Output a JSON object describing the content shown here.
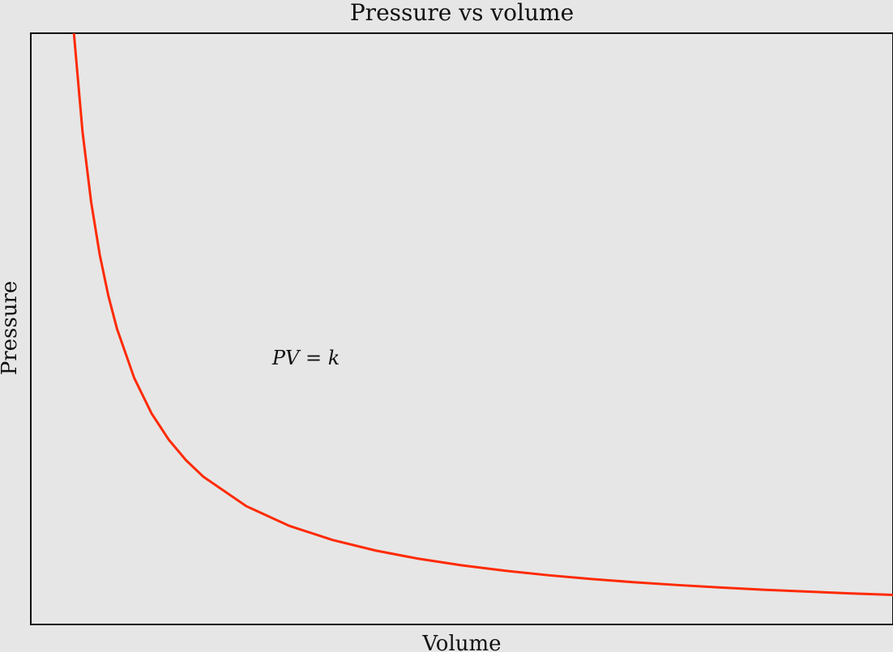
{
  "chart_data": {
    "type": "line",
    "title": "Pressure vs volume",
    "xlabel": "Volume",
    "ylabel": "Pressure",
    "grid": false,
    "legend": "none",
    "background_color": "#e6e6e6",
    "axes_color": "#111111",
    "series": [
      {
        "color": "#ff2a00",
        "x": [
          0.5,
          0.6,
          0.7,
          0.8,
          0.9,
          1.0,
          1.2,
          1.4,
          1.6,
          1.8,
          2.0,
          2.5,
          3.0,
          3.5,
          4.0,
          4.5,
          5.0,
          5.5,
          6.0,
          6.5,
          7.0,
          7.5,
          8.0,
          8.5,
          9.0,
          9.5,
          10.0
        ],
        "y": [
          10.0,
          8.333,
          7.143,
          6.25,
          5.556,
          5.0,
          4.167,
          3.571,
          3.125,
          2.778,
          2.5,
          2.0,
          1.667,
          1.429,
          1.25,
          1.111,
          1.0,
          0.909,
          0.833,
          0.769,
          0.714,
          0.667,
          0.625,
          0.588,
          0.556,
          0.526,
          0.5
        ]
      }
    ],
    "xlim": [
      0.0,
      10.0
    ],
    "ylim": [
      0.0,
      10.0
    ],
    "annotations": [
      {
        "text": "PV = k",
        "x": 2.8,
        "y": 4.4
      }
    ]
  }
}
